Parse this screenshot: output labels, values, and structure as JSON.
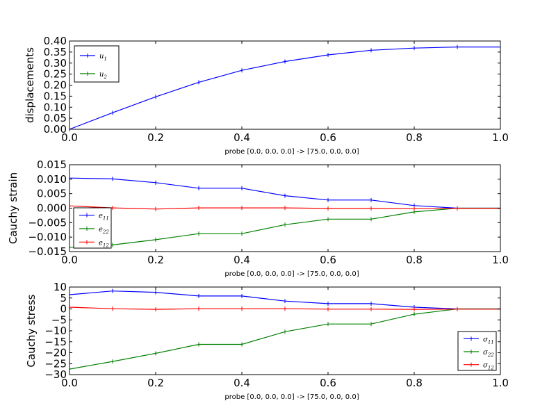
{
  "figure": {
    "background": "#ffffff"
  },
  "chart_data": [
    {
      "type": "line",
      "ylabel": "displacements",
      "xlabel": "probe [0.0, 0.0, 0.0] -> [75.0, 0.0, 0.0]",
      "xlim": [
        0.0,
        1.0
      ],
      "ylim": [
        0.0,
        0.4
      ],
      "xticks": [
        "0.0",
        "0.2",
        "0.4",
        "0.6",
        "0.8",
        "1.0"
      ],
      "yticks": [
        "0.00",
        "0.05",
        "0.10",
        "0.15",
        "0.20",
        "0.25",
        "0.30",
        "0.35",
        "0.40"
      ],
      "grid": false,
      "legend": "upper-left",
      "x": [
        0.0,
        0.1,
        0.2,
        0.3,
        0.4,
        0.5,
        0.6,
        0.7,
        0.8,
        0.9,
        1.0
      ],
      "series": [
        {
          "name": "u1",
          "label_main": "u",
          "label_sub": "1",
          "color": "#0000ff",
          "values": [
            0.0,
            0.075,
            0.147,
            0.213,
            0.267,
            0.307,
            0.337,
            0.358,
            0.368,
            0.373,
            0.373
          ]
        },
        {
          "name": "u2",
          "label_main": "u",
          "label_sub": "2",
          "color": "#008000",
          "values": null
        }
      ]
    },
    {
      "type": "line",
      "ylabel": "Cauchy strain",
      "xlabel": "probe [0.0, 0.0, 0.0] -> [75.0, 0.0, 0.0]",
      "xlim": [
        0.0,
        1.0
      ],
      "ylim": [
        -0.015,
        0.015
      ],
      "xticks": [
        "0.0",
        "0.2",
        "0.4",
        "0.6",
        "0.8",
        "1.0"
      ],
      "yticks": [
        "0.015",
        "0.010",
        "0.005",
        "0.000",
        "−0.005",
        "−0.010",
        "−0.015"
      ],
      "grid": false,
      "legend": "lower-left",
      "x": [
        0.0,
        0.1,
        0.2,
        0.3,
        0.4,
        0.5,
        0.6,
        0.7,
        0.8,
        0.9,
        1.0
      ],
      "series": [
        {
          "name": "e11",
          "label_main": "e",
          "label_sub": "11",
          "color": "#0000ff",
          "values": [
            0.0104,
            0.0101,
            0.0088,
            0.0069,
            0.0069,
            0.0043,
            0.0028,
            0.0028,
            0.0009,
            0.0,
            0.0
          ]
        },
        {
          "name": "e22",
          "label_main": "e",
          "label_sub": "22",
          "color": "#008000",
          "values": [
            -0.0135,
            -0.0127,
            -0.0109,
            -0.0088,
            -0.0088,
            -0.0057,
            -0.0038,
            -0.0038,
            -0.0013,
            0.0,
            0.0
          ]
        },
        {
          "name": "e12",
          "label_main": "e",
          "label_sub": "12",
          "color": "#ff0000",
          "values": [
            0.0008,
            0.0001,
            -0.0003,
            0.0001,
            0.0001,
            0.0001,
            -0.0001,
            -0.0001,
            -0.0002,
            -0.0001,
            -0.0001
          ]
        }
      ]
    },
    {
      "type": "line",
      "ylabel": "Cauchy stress",
      "xlabel": "probe [0.0, 0.0, 0.0] -> [75.0, 0.0, 0.0]",
      "xlim": [
        0.0,
        1.0
      ],
      "ylim": [
        -30,
        10
      ],
      "xticks": [
        "0.0",
        "0.2",
        "0.4",
        "0.6",
        "0.8",
        "1.0"
      ],
      "yticks": [
        "10",
        "5",
        "0",
        "−5",
        "−10",
        "−15",
        "−20",
        "−25",
        "−30"
      ],
      "grid": false,
      "legend": "lower-right",
      "x": [
        0.0,
        0.1,
        0.2,
        0.3,
        0.4,
        0.5,
        0.6,
        0.7,
        0.8,
        0.9,
        1.0
      ],
      "series": [
        {
          "name": "sigma11",
          "label_main": "σ",
          "label_sub": "11",
          "color": "#0000ff",
          "values": [
            6.5,
            8.2,
            7.6,
            5.9,
            5.9,
            3.6,
            2.4,
            2.4,
            0.8,
            0.0,
            0.0
          ]
        },
        {
          "name": "sigma22",
          "label_main": "σ",
          "label_sub": "22",
          "color": "#008000",
          "values": [
            -27.5,
            -24.0,
            -20.3,
            -16.2,
            -16.2,
            -10.4,
            -6.9,
            -6.9,
            -2.4,
            0.0,
            0.0
          ]
        },
        {
          "name": "sigma12",
          "label_main": "σ",
          "label_sub": "12",
          "color": "#ff0000",
          "values": [
            0.8,
            0.1,
            -0.2,
            0.1,
            0.1,
            0.1,
            -0.1,
            -0.1,
            -0.2,
            -0.1,
            -0.1
          ]
        }
      ]
    }
  ]
}
